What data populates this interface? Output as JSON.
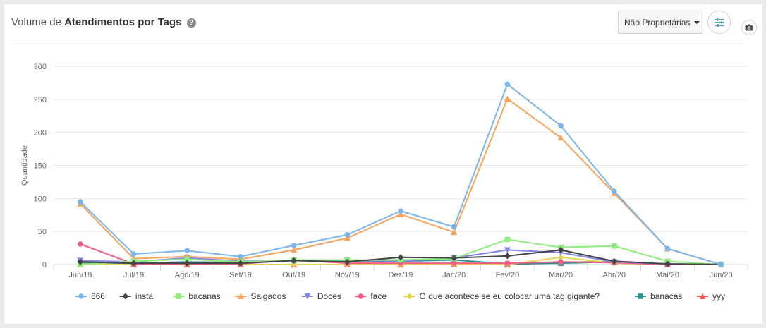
{
  "header": {
    "title_prefix": "Volume de",
    "title_bold": "Atendimentos por Tags",
    "help_icon": "help-circle-icon",
    "filter_label": "Não Proprietárias",
    "filter_icon": "sliders-icon",
    "camera_icon": "camera-icon"
  },
  "colors": {
    "666": "#7cb5ec",
    "insta": "#434348",
    "bacanas": "#90ed7d",
    "Salgados": "#f7a35c",
    "Doces": "#8085e9",
    "face": "#f15c80",
    "O que acontece se eu colocar uma tag gigante?": "#e4d354",
    "banacas": "#2b908f",
    "yyy": "#f45b5b"
  },
  "chart_data": {
    "type": "line",
    "title": "",
    "xlabel": "",
    "ylabel": "Quantidade",
    "ylim": [
      0,
      300
    ],
    "yticks": [
      0,
      50,
      100,
      150,
      200,
      250,
      300
    ],
    "grid": true,
    "legend_position": "bottom",
    "categories": [
      "Jun/19",
      "Jul/19",
      "Ago/19",
      "Set/19",
      "Out/19",
      "Nov/19",
      "Dez/19",
      "Jan/20",
      "Fev/20",
      "Mar/20",
      "Abr/20",
      "Mai/20",
      "Jun/20"
    ],
    "series": [
      {
        "name": "666",
        "marker": "circle",
        "values": [
          95,
          16,
          21,
          12,
          29,
          45,
          81,
          57,
          273,
          210,
          111,
          24,
          0
        ]
      },
      {
        "name": "insta",
        "marker": "diamond",
        "values": [
          4,
          2,
          2,
          2,
          6,
          4,
          11,
          10,
          13,
          22,
          5,
          1,
          0
        ]
      },
      {
        "name": "bacanas",
        "marker": "square",
        "values": [
          0,
          5,
          8,
          4,
          7,
          7,
          7,
          9,
          38,
          26,
          28,
          5,
          0
        ]
      },
      {
        "name": "Salgados",
        "marker": "triangle",
        "values": [
          92,
          9,
          12,
          8,
          22,
          40,
          76,
          49,
          251,
          192,
          108,
          24,
          0
        ]
      },
      {
        "name": "Doces",
        "marker": "triangle-down",
        "values": [
          6,
          4,
          10,
          5,
          6,
          7,
          5,
          10,
          22,
          18,
          4,
          1,
          0
        ]
      },
      {
        "name": "face",
        "marker": "circle",
        "values": [
          31,
          1,
          1,
          1,
          7,
          2,
          2,
          2,
          2,
          4,
          3,
          0,
          0
        ]
      },
      {
        "name": "O que acontece se eu colocar uma tag gigante?",
        "marker": "diamond",
        "values": [
          0,
          0,
          0,
          0,
          0,
          0,
          0,
          0,
          0,
          11,
          2,
          0,
          0
        ]
      },
      {
        "name": "banacas",
        "marker": "square",
        "values": [
          3,
          2,
          4,
          3,
          6,
          6,
          5,
          7,
          1,
          2,
          4,
          1,
          0
        ]
      },
      {
        "name": "yyy",
        "marker": "triangle",
        "values": [
          0,
          0,
          0,
          0,
          0,
          0,
          0,
          0,
          0,
          3,
          5,
          0,
          0
        ]
      }
    ]
  }
}
